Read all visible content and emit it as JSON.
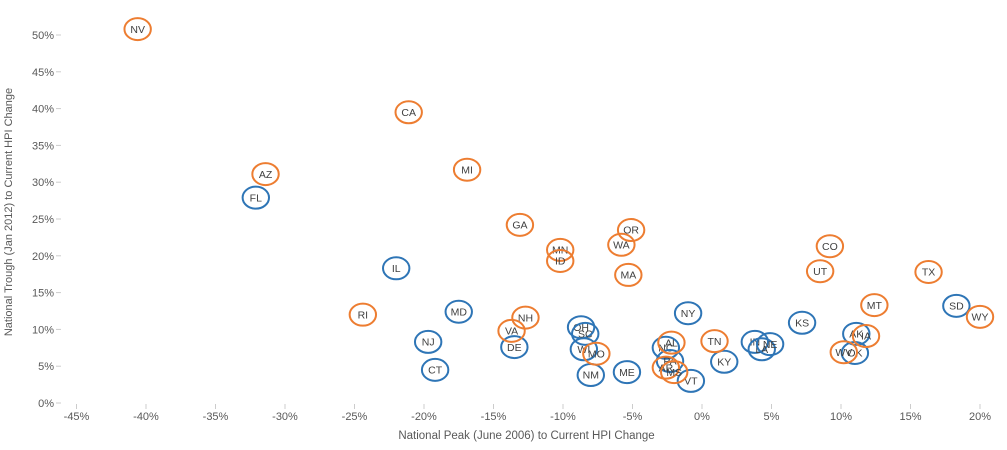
{
  "page": {
    "background": "#ffffff"
  },
  "colors": {
    "orange_series": "#ED7D31",
    "blue_series": "#2E75B6",
    "state_label": "#404040",
    "tick_label": "#595959",
    "axis_title": "#595959",
    "tick_mark": "#cccccc"
  },
  "chart_data": {
    "type": "scatter",
    "title": "",
    "xlabel": "National Peak (June 2006) to Current HPI Change",
    "ylabel": "National Trough (Jan 2012) to Current HPI Change",
    "tick_format": "percent",
    "grid": false,
    "legend_position": "none",
    "xlim": [
      -47.5,
      21.8
    ],
    "ylim": [
      -1,
      53.5
    ],
    "x_ticks": [
      -45,
      -40,
      -35,
      -30,
      -25,
      -20,
      -15,
      -10,
      -5,
      0,
      5,
      10,
      15,
      20
    ],
    "y_ticks": [
      0,
      5,
      10,
      15,
      20,
      25,
      30,
      35,
      40,
      45,
      50
    ],
    "marker": "labeled-circle",
    "series": [
      {
        "name": "blue-circles",
        "color": "#2E75B6",
        "points": [
          {
            "label": "FL",
            "x": -32.1,
            "y": 27.9
          },
          {
            "label": "IL",
            "x": -22.0,
            "y": 18.3
          },
          {
            "label": "CT",
            "x": -19.2,
            "y": 4.5
          },
          {
            "label": "NJ",
            "x": -19.7,
            "y": 8.3
          },
          {
            "label": "MD",
            "x": -17.5,
            "y": 12.4
          },
          {
            "label": "DE",
            "x": -13.5,
            "y": 7.6
          },
          {
            "label": "OH",
            "x": -8.7,
            "y": 10.3
          },
          {
            "label": "SC",
            "x": -8.4,
            "y": 9.4
          },
          {
            "label": "WI",
            "x": -8.5,
            "y": 7.3
          },
          {
            "label": "NM",
            "x": -8.0,
            "y": 3.8
          },
          {
            "label": "ME",
            "x": -5.4,
            "y": 4.2
          },
          {
            "label": "NY",
            "x": -1.0,
            "y": 12.2
          },
          {
            "label": "NC",
            "x": -2.6,
            "y": 7.5
          },
          {
            "label": "PA",
            "x": -2.3,
            "y": 5.7
          },
          {
            "label": "VT",
            "x": -0.8,
            "y": 3.0
          },
          {
            "label": "KY",
            "x": 1.6,
            "y": 5.6
          },
          {
            "label": "IN",
            "x": 3.8,
            "y": 8.3
          },
          {
            "label": "LA",
            "x": 4.3,
            "y": 7.3
          },
          {
            "label": "NE",
            "x": 4.9,
            "y": 8.0
          },
          {
            "label": "KS",
            "x": 7.2,
            "y": 10.9
          },
          {
            "label": "AK",
            "x": 11.1,
            "y": 9.4
          },
          {
            "label": "OK",
            "x": 11.0,
            "y": 6.8
          },
          {
            "label": "SD",
            "x": 18.3,
            "y": 13.2
          }
        ]
      },
      {
        "name": "orange-circles",
        "color": "#ED7D31",
        "points": [
          {
            "label": "NV",
            "x": -40.6,
            "y": 50.8
          },
          {
            "label": "CA",
            "x": -21.1,
            "y": 39.5
          },
          {
            "label": "AZ",
            "x": -31.4,
            "y": 31.1
          },
          {
            "label": "MI",
            "x": -16.9,
            "y": 31.7
          },
          {
            "label": "GA",
            "x": -13.1,
            "y": 24.2
          },
          {
            "label": "MN",
            "x": -10.2,
            "y": 20.8
          },
          {
            "label": "ID",
            "x": -10.2,
            "y": 19.3
          },
          {
            "label": "WA",
            "x": -5.8,
            "y": 21.5
          },
          {
            "label": "OR",
            "x": -5.1,
            "y": 23.5
          },
          {
            "label": "MA",
            "x": -5.3,
            "y": 17.4
          },
          {
            "label": "RI",
            "x": -24.4,
            "y": 12.0
          },
          {
            "label": "NH",
            "x": -12.7,
            "y": 11.6
          },
          {
            "label": "VA",
            "x": -13.7,
            "y": 9.8
          },
          {
            "label": "MO",
            "x": -7.6,
            "y": 6.7
          },
          {
            "label": "AL",
            "x": -2.2,
            "y": 8.2
          },
          {
            "label": "AR",
            "x": -2.6,
            "y": 4.8
          },
          {
            "label": "MS",
            "x": -2.0,
            "y": 4.2
          },
          {
            "label": "TN",
            "x": 0.9,
            "y": 8.4
          },
          {
            "label": "WV",
            "x": 10.2,
            "y": 6.9
          },
          {
            "label": "IA",
            "x": 11.8,
            "y": 9.1
          },
          {
            "label": "UT",
            "x": 8.5,
            "y": 17.9
          },
          {
            "label": "CO",
            "x": 9.2,
            "y": 21.3
          },
          {
            "label": "MT",
            "x": 12.4,
            "y": 13.3
          },
          {
            "label": "TX",
            "x": 16.3,
            "y": 17.8
          },
          {
            "label": "WY",
            "x": 20.0,
            "y": 11.7
          }
        ]
      }
    ]
  }
}
